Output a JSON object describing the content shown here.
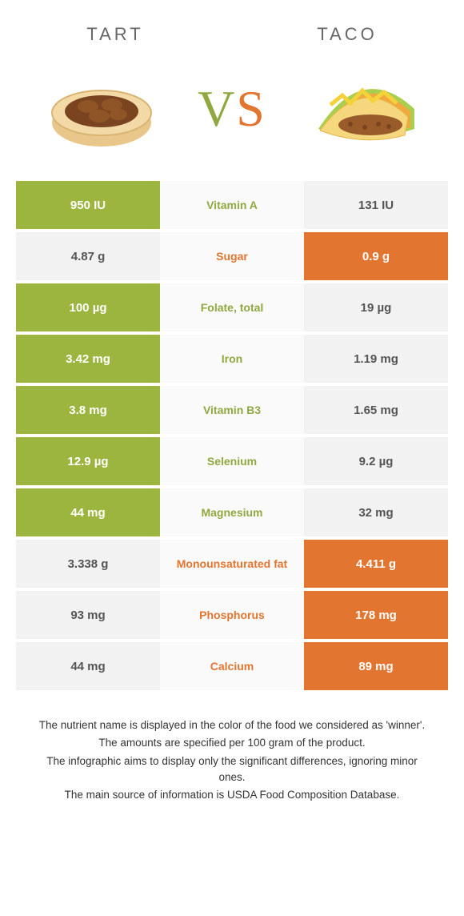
{
  "header": {
    "left": "TART",
    "right": "TACO"
  },
  "vs": {
    "v": "V",
    "s": "S"
  },
  "colors": {
    "green": "#9cb53f",
    "orange": "#e2752f",
    "green_text": "#8fa83f",
    "orange_text": "#e2752f",
    "light": "#f2f2f2",
    "mid": "#fafafa"
  },
  "rows": [
    {
      "left": "950 IU",
      "label": "Vitamin A",
      "right": "131 IU",
      "winner": "left"
    },
    {
      "left": "4.87 g",
      "label": "Sugar",
      "right": "0.9 g",
      "winner": "right"
    },
    {
      "left": "100 µg",
      "label": "Folate, total",
      "right": "19 µg",
      "winner": "left"
    },
    {
      "left": "3.42 mg",
      "label": "Iron",
      "right": "1.19 mg",
      "winner": "left"
    },
    {
      "left": "3.8 mg",
      "label": "Vitamin B3",
      "right": "1.65 mg",
      "winner": "left"
    },
    {
      "left": "12.9 µg",
      "label": "Selenium",
      "right": "9.2 µg",
      "winner": "left"
    },
    {
      "left": "44 mg",
      "label": "Magnesium",
      "right": "32 mg",
      "winner": "left"
    },
    {
      "left": "3.338 g",
      "label": "Monounsaturated fat",
      "right": "4.411 g",
      "winner": "right"
    },
    {
      "left": "93 mg",
      "label": "Phosphorus",
      "right": "178 mg",
      "winner": "right"
    },
    {
      "left": "44 mg",
      "label": "Calcium",
      "right": "89 mg",
      "winner": "right"
    }
  ],
  "footnotes": [
    "The nutrient name is displayed in the color of the food we considered as 'winner'.",
    "The amounts are specified per 100 gram of the product.",
    "The infographic aims to display only the significant differences, ignoring minor ones.",
    "The main source of information is USDA Food Composition Database."
  ]
}
